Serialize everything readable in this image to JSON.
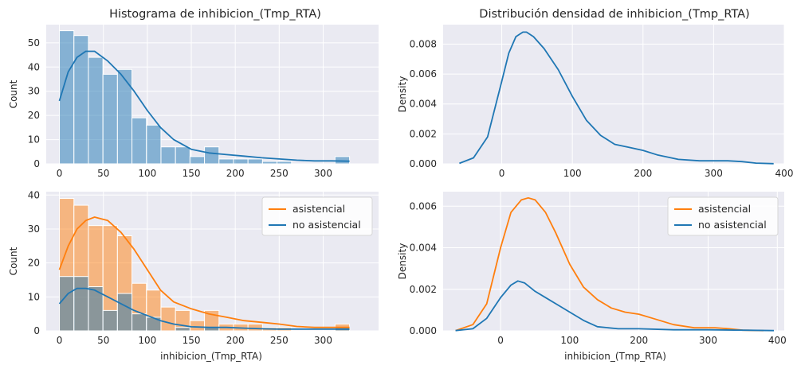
{
  "chart_data": [
    {
      "type": "bar",
      "panel": "histogram-all",
      "title": "Histograma de inhibicion_(Tmp_RTA)",
      "xlabel": "",
      "ylabel": "Count",
      "xlim": [
        -15,
        363
      ],
      "ylim": [
        0,
        57.5
      ],
      "xticks": [
        "0",
        "50",
        "100",
        "150",
        "200",
        "250",
        "300"
      ],
      "xtick_values": [
        0,
        50,
        100,
        150,
        200,
        250,
        300
      ],
      "yticks": [
        "0",
        "10",
        "20",
        "30",
        "40",
        "50"
      ],
      "ytick_values": [
        0,
        10,
        20,
        30,
        40,
        50
      ],
      "bin_start": 0,
      "bin_width": 16.5,
      "counts": [
        55,
        53,
        44,
        37,
        39,
        19,
        16,
        7,
        7,
        3,
        7,
        2,
        2,
        2,
        1,
        1,
        0,
        0,
        0,
        3
      ],
      "kde": {
        "x": [
          0,
          10,
          20,
          30,
          40,
          55,
          70,
          85,
          100,
          115,
          130,
          150,
          170,
          190,
          210,
          230,
          250,
          270,
          290,
          310,
          330
        ],
        "y": [
          26,
          38,
          44,
          46.5,
          46.5,
          42.5,
          37,
          30,
          22,
          15,
          10,
          6,
          4.5,
          3.8,
          3.2,
          2.5,
          2.0,
          1.5,
          1.2,
          1.2,
          1.1
        ]
      },
      "colors": {
        "bar": "#1f77b4",
        "bar_opacity": 0.5,
        "kde": "#1f77b4"
      },
      "grid": true
    },
    {
      "type": "line",
      "panel": "density-all",
      "title": "Distribución densidad de inhibicion_(Tmp_RTA)",
      "xlabel": "",
      "ylabel": "Density",
      "xlim": [
        -83,
        400
      ],
      "ylim": [
        0,
        0.0093
      ],
      "xticks": [
        "0",
        "100",
        "200",
        "300",
        "400"
      ],
      "xtick_values": [
        0,
        100,
        200,
        300,
        400
      ],
      "yticks": [
        "0.000",
        "0.002",
        "0.004",
        "0.006",
        "0.008"
      ],
      "ytick_values": [
        0,
        0.002,
        0.004,
        0.006,
        0.008
      ],
      "series": [
        {
          "x": [
            -60,
            -40,
            -20,
            0,
            10,
            20,
            30,
            35,
            45,
            60,
            80,
            100,
            120,
            140,
            160,
            180,
            200,
            220,
            250,
            280,
            300,
            320,
            340,
            360,
            385
          ],
          "y": [
            3e-05,
            0.0004,
            0.0018,
            0.0055,
            0.0074,
            0.0085,
            0.0088,
            0.0088,
            0.0085,
            0.0077,
            0.0063,
            0.0045,
            0.0029,
            0.0019,
            0.0013,
            0.0011,
            0.0009,
            0.0006,
            0.0003,
            0.0002,
            0.0002,
            0.0002,
            0.00015,
            5e-05,
            1e-05
          ],
          "color": "#1f77b4"
        }
      ],
      "grid": true
    },
    {
      "type": "bar",
      "panel": "histogram-by-group",
      "title": "",
      "xlabel": "inhibicion_(Tmp_RTA)",
      "ylabel": "Count",
      "xlim": [
        -15,
        363
      ],
      "ylim": [
        0,
        41
      ],
      "xticks": [
        "0",
        "50",
        "100",
        "150",
        "200",
        "250",
        "300"
      ],
      "xtick_values": [
        0,
        50,
        100,
        150,
        200,
        250,
        300
      ],
      "yticks": [
        "0",
        "10",
        "20",
        "30",
        "40"
      ],
      "ytick_values": [
        0,
        10,
        20,
        30,
        40
      ],
      "bin_start": 0,
      "bin_width": 16.5,
      "series": [
        {
          "name": "asistencial",
          "color": "#ff7f0e",
          "counts": [
            39,
            37,
            31,
            31,
            28,
            14,
            12,
            7,
            6,
            3,
            6,
            2,
            2,
            2,
            1,
            1,
            0,
            0,
            0,
            2
          ],
          "kde": {
            "x": [
              0,
              10,
              20,
              30,
              40,
              55,
              70,
              85,
              100,
              115,
              130,
              150,
              170,
              190,
              210,
              230,
              250,
              270,
              290,
              310,
              330
            ],
            "y": [
              18,
              25,
              30,
              32.5,
              33.5,
              32.5,
              29,
              24,
              18,
              12,
              8.5,
              6.5,
              5,
              4,
              3,
              2.5,
              2,
              1.3,
              1,
              1,
              1
            ]
          }
        },
        {
          "name": "no asistencial",
          "color": "#1f77b4",
          "counts": [
            16,
            16,
            13,
            6,
            11,
            5,
            4,
            0,
            1,
            0,
            1,
            0,
            0,
            0,
            0,
            0,
            0,
            0,
            0,
            1
          ],
          "kde": {
            "x": [
              0,
              10,
              20,
              30,
              40,
              55,
              70,
              85,
              100,
              115,
              130,
              150,
              170,
              190,
              210,
              230,
              250,
              270,
              290,
              310,
              330
            ],
            "y": [
              8,
              11,
              12.5,
              12.5,
              12,
              10,
              8,
              6,
              4.5,
              3,
              2,
              1.2,
              1,
              1,
              0.8,
              0.6,
              0.5,
              0.5,
              0.5,
              0.5,
              0.5
            ]
          }
        }
      ],
      "legend": {
        "position": "top-right",
        "entries": [
          "asistencial",
          "no asistencial"
        ]
      },
      "grid": true
    },
    {
      "type": "line",
      "panel": "density-by-group",
      "title": "",
      "xlabel": "inhibicion_(Tmp_RTA)",
      "ylabel": "Density",
      "xlim": [
        -83,
        410
      ],
      "ylim": [
        0,
        0.0067
      ],
      "xticks": [
        "0",
        "100",
        "200",
        "300",
        "400"
      ],
      "xtick_values": [
        0,
        100,
        200,
        300,
        400
      ],
      "yticks": [
        "0.000",
        "0.002",
        "0.004",
        "0.006"
      ],
      "ytick_values": [
        0,
        0.002,
        0.004,
        0.006
      ],
      "series": [
        {
          "name": "asistencial",
          "color": "#ff7f0e",
          "x": [
            -65,
            -40,
            -20,
            0,
            15,
            30,
            40,
            50,
            65,
            80,
            100,
            120,
            140,
            160,
            180,
            200,
            220,
            250,
            280,
            310,
            330,
            350,
            380
          ],
          "y": [
            1e-05,
            0.0003,
            0.0013,
            0.004,
            0.0057,
            0.0063,
            0.0064,
            0.0063,
            0.0057,
            0.0047,
            0.0032,
            0.0021,
            0.0015,
            0.0011,
            0.0009,
            0.0008,
            0.0006,
            0.0003,
            0.00015,
            0.00015,
            0.0001,
            3e-05,
            1e-05
          ]
        },
        {
          "name": "no asistencial",
          "color": "#1f77b4",
          "x": [
            -65,
            -40,
            -20,
            0,
            15,
            25,
            35,
            50,
            65,
            80,
            100,
            120,
            140,
            170,
            200,
            250,
            300,
            350,
            395
          ],
          "y": [
            1e-05,
            0.0001,
            0.0006,
            0.0016,
            0.0022,
            0.0024,
            0.0023,
            0.0019,
            0.0016,
            0.0013,
            0.0009,
            0.0005,
            0.0002,
            0.0001,
            0.0001,
            5e-05,
            5e-05,
            3e-05,
            1e-05
          ]
        }
      ],
      "legend": {
        "position": "top-right",
        "entries": [
          "asistencial",
          "no asistencial"
        ]
      },
      "grid": true
    }
  ]
}
